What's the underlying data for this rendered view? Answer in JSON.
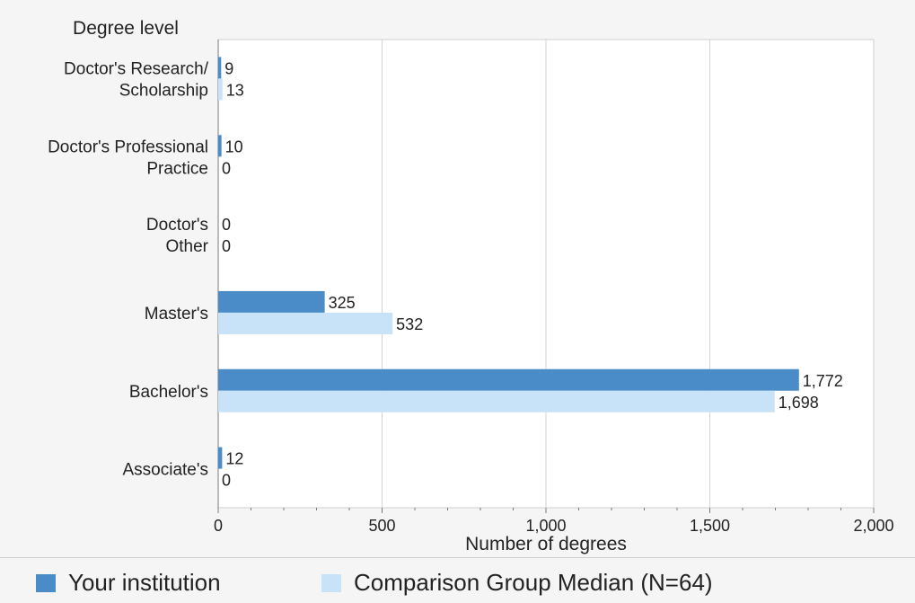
{
  "colors": {
    "your_institution": "#4a8cc7",
    "comparison": "#c8e2f7",
    "grid": "#d4d4d4",
    "axis": "#7a7a7a"
  },
  "chart_data": {
    "type": "bar",
    "orientation": "horizontal",
    "ylabel": "Degree level",
    "xlabel": "Number of degrees",
    "xlim": [
      0,
      2000
    ],
    "xticks": [
      0,
      500,
      1000,
      1500,
      2000
    ],
    "xtick_labels": [
      "0",
      "500",
      "1,000",
      "1,500",
      "2,000"
    ],
    "grid": true,
    "legend_position": "bottom",
    "categories": [
      [
        "Doctor's Research/",
        "Scholarship"
      ],
      [
        "Doctor's Professional",
        "Practice"
      ],
      [
        "Doctor's",
        "Other"
      ],
      [
        "Master's"
      ],
      [
        "Bachelor's"
      ],
      [
        "Associate's"
      ]
    ],
    "series": [
      {
        "name": "Your institution",
        "color_key": "your_institution",
        "values": [
          9,
          10,
          0,
          325,
          1772,
          12
        ],
        "labels": [
          "9",
          "10",
          "0",
          "325",
          "1,772",
          "12"
        ]
      },
      {
        "name": "Comparison Group Median (N=64)",
        "color_key": "comparison",
        "values": [
          13,
          0,
          0,
          532,
          1698,
          0
        ],
        "labels": [
          "13",
          "0",
          "0",
          "532",
          "1,698",
          "0"
        ]
      }
    ]
  }
}
